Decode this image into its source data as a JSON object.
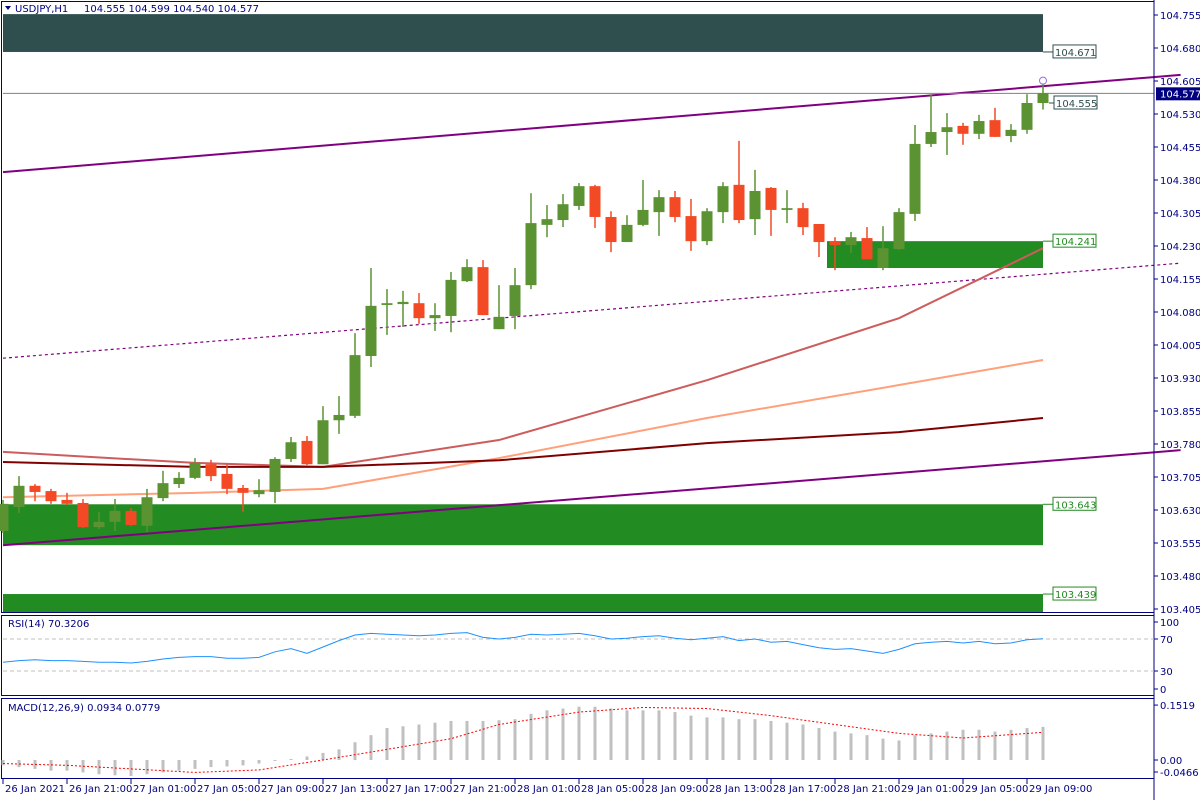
{
  "header": {
    "symbol": "USDJPY,H1",
    "ohlc": "104.555 104.599 104.540 104.577"
  },
  "colors": {
    "bull": "#5b9232",
    "bear": "#f34a25",
    "zone_green": "#228b22",
    "zone_dark": "#2f4f4f",
    "trend": "#800080",
    "ma_fast": "#cd5c5c",
    "ma_mid": "#ffa07a",
    "ma_slow": "#800000",
    "rsi": "#1e90ff",
    "macd_hist": "#c0c0c0",
    "macd_signal": "#ff0000",
    "axis": "#000080"
  },
  "chart_data": [
    {
      "type": "candlestick",
      "title": "USDJPY,H1",
      "ylim": [
        103.398,
        104.79
      ],
      "y_ticks": [
        "104.755",
        "104.680",
        "104.605",
        "104.530",
        "104.455",
        "104.380",
        "104.305",
        "104.230",
        "104.155",
        "104.080",
        "104.005",
        "103.930",
        "103.855",
        "103.780",
        "103.705",
        "103.630",
        "103.555",
        "103.480",
        "103.405"
      ],
      "x_ticks": [
        {
          "index": 0,
          "label": "26 Jan 2021"
        },
        {
          "index": 4,
          "label": "26 Jan 21:00"
        },
        {
          "index": 8,
          "label": "27 Jan 01:00"
        },
        {
          "index": 12,
          "label": "27 Jan 05:00"
        },
        {
          "index": 16,
          "label": "27 Jan 09:00"
        },
        {
          "index": 20,
          "label": "27 Jan 13:00"
        },
        {
          "index": 24,
          "label": "27 Jan 17:00"
        },
        {
          "index": 28,
          "label": "27 Jan 21:00"
        },
        {
          "index": 32,
          "label": "28 Jan 01:00"
        },
        {
          "index": 36,
          "label": "28 Jan 05:00"
        },
        {
          "index": 40,
          "label": "28 Jan 09:00"
        },
        {
          "index": 44,
          "label": "28 Jan 13:00"
        },
        {
          "index": 48,
          "label": "28 Jan 17:00"
        },
        {
          "index": 52,
          "label": "28 Jan 21:00"
        },
        {
          "index": 56,
          "label": "29 Jan 01:00"
        },
        {
          "index": 60,
          "label": "29 Jan 05:00"
        },
        {
          "index": 64,
          "label": "29 Jan 09:00"
        }
      ],
      "ohlc": [
        [
          103.582,
          103.653,
          103.578,
          103.644
        ],
        [
          103.637,
          103.707,
          103.623,
          103.685
        ],
        [
          103.685,
          103.689,
          103.65,
          103.671
        ],
        [
          103.673,
          103.678,
          103.644,
          103.65
        ],
        [
          103.653,
          103.669,
          103.641,
          103.644
        ],
        [
          103.646,
          103.655,
          103.589,
          103.591
        ],
        [
          103.591,
          103.625,
          103.587,
          103.603
        ],
        [
          103.603,
          103.655,
          103.582,
          103.628
        ],
        [
          103.628,
          103.634,
          103.594,
          103.596
        ],
        [
          103.594,
          103.678,
          103.58,
          103.659
        ],
        [
          103.657,
          103.719,
          103.65,
          103.691
        ],
        [
          103.689,
          103.716,
          103.68,
          103.703
        ],
        [
          103.703,
          103.748,
          103.7,
          103.737
        ],
        [
          103.734,
          103.744,
          103.696,
          103.707
        ],
        [
          103.712,
          103.734,
          103.666,
          103.678
        ],
        [
          103.68,
          103.687,
          103.625,
          103.669
        ],
        [
          103.666,
          103.7,
          103.659,
          103.675
        ],
        [
          103.671,
          103.75,
          103.646,
          103.746
        ],
        [
          103.746,
          103.796,
          103.739,
          103.784
        ],
        [
          103.787,
          103.798,
          103.732,
          103.734
        ],
        [
          103.734,
          103.866,
          103.734,
          103.834
        ],
        [
          103.834,
          103.889,
          103.803,
          103.846
        ],
        [
          103.844,
          104.032,
          103.839,
          103.982
        ],
        [
          103.98,
          104.18,
          103.955,
          104.094
        ],
        [
          104.096,
          104.132,
          104.028,
          104.1
        ],
        [
          104.098,
          104.128,
          104.046,
          104.103
        ],
        [
          104.1,
          104.123,
          104.053,
          104.066
        ],
        [
          104.066,
          104.1,
          104.037,
          104.073
        ],
        [
          104.071,
          104.171,
          104.034,
          104.153
        ],
        [
          104.15,
          104.2,
          104.148,
          104.182
        ],
        [
          104.182,
          104.198,
          104.073,
          104.073
        ],
        [
          104.041,
          104.141,
          104.041,
          104.069
        ],
        [
          104.071,
          104.18,
          104.041,
          104.141
        ],
        [
          104.141,
          104.35,
          104.132,
          104.282
        ],
        [
          104.278,
          104.323,
          104.25,
          104.291
        ],
        [
          104.289,
          104.348,
          104.273,
          104.325
        ],
        [
          104.321,
          104.373,
          104.312,
          104.366
        ],
        [
          104.366,
          104.369,
          104.271,
          104.296
        ],
        [
          104.296,
          104.309,
          104.216,
          104.239
        ],
        [
          104.239,
          104.3,
          104.239,
          104.278
        ],
        [
          104.278,
          104.38,
          104.275,
          104.312
        ],
        [
          104.307,
          104.357,
          104.253,
          104.341
        ],
        [
          104.341,
          104.355,
          104.284,
          104.296
        ],
        [
          104.298,
          104.337,
          104.219,
          104.241
        ],
        [
          104.241,
          104.316,
          104.232,
          104.309
        ],
        [
          104.307,
          104.375,
          104.282,
          104.366
        ],
        [
          104.369,
          104.469,
          104.282,
          104.289
        ],
        [
          104.291,
          104.403,
          104.255,
          104.355
        ],
        [
          104.362,
          104.364,
          104.253,
          104.312
        ],
        [
          104.312,
          104.357,
          104.282,
          104.316
        ],
        [
          104.316,
          104.328,
          104.255,
          104.273
        ],
        [
          104.28,
          104.28,
          104.205,
          104.239
        ],
        [
          104.241,
          104.25,
          104.175,
          104.232
        ],
        [
          104.232,
          104.262,
          104.214,
          104.25
        ],
        [
          104.248,
          104.273,
          104.2,
          104.2
        ],
        [
          104.18,
          104.275,
          104.175,
          104.225
        ],
        [
          104.223,
          104.316,
          104.221,
          104.307
        ],
        [
          104.303,
          104.505,
          104.287,
          104.462
        ],
        [
          104.462,
          104.575,
          104.455,
          104.489
        ],
        [
          104.489,
          104.532,
          104.437,
          104.5
        ],
        [
          104.503,
          104.51,
          104.46,
          104.485
        ],
        [
          104.485,
          104.528,
          104.473,
          104.514
        ],
        [
          104.516,
          104.544,
          104.478,
          104.478
        ],
        [
          104.48,
          104.507,
          104.466,
          104.494
        ],
        [
          104.494,
          104.575,
          104.485,
          104.555
        ],
        [
          104.555,
          104.599,
          104.54,
          104.577
        ]
      ],
      "moving_averages": [
        {
          "name": "MA fast",
          "color_key": "ma_fast",
          "points": [
            [
              0,
              103.762
            ],
            [
              12,
              103.737
            ],
            [
              20,
              103.728
            ],
            [
              31,
              103.789
            ],
            [
              44,
              103.925
            ],
            [
              56,
              104.066
            ],
            [
              65,
              104.225
            ]
          ]
        },
        {
          "name": "MA mid",
          "color_key": "ma_mid",
          "points": [
            [
              0,
              103.659
            ],
            [
              12,
              103.669
            ],
            [
              20,
              103.678
            ],
            [
              31,
              103.748
            ],
            [
              44,
              103.839
            ],
            [
              56,
              103.914
            ],
            [
              65,
              103.971
            ]
          ]
        },
        {
          "name": "MA slow",
          "color_key": "ma_slow",
          "points": [
            [
              0,
              103.739
            ],
            [
              12,
              103.728
            ],
            [
              20,
              103.728
            ],
            [
              31,
              103.743
            ],
            [
              44,
              103.782
            ],
            [
              56,
              103.807
            ],
            [
              65,
              103.839
            ]
          ]
        }
      ],
      "trendlines": [
        {
          "name": "upper-channel",
          "style": "solid",
          "from": [
            0,
            104.398
          ],
          "to": [
            73.6,
            104.619
          ]
        },
        {
          "name": "mid-channel",
          "style": "dotted",
          "from": [
            0,
            103.975
          ],
          "to": [
            73.6,
            104.191
          ]
        },
        {
          "name": "lower-channel",
          "style": "solid",
          "from": [
            0,
            103.55
          ],
          "to": [
            73.6,
            103.766
          ]
        }
      ],
      "zones": [
        {
          "name": "resistance-zone",
          "color_key": "zone_dark",
          "start": 0,
          "end": 65,
          "top": 104.757,
          "bottom": 104.671,
          "label": "104.671"
        },
        {
          "name": "support-zone-upper",
          "color_key": "zone_green",
          "start": 52,
          "end": 65,
          "top": 104.241,
          "bottom": 104.18,
          "label": "104.241"
        },
        {
          "name": "support-zone-middle",
          "color_key": "zone_green",
          "start": 0,
          "end": 65,
          "top": 103.643,
          "bottom": 103.55,
          "label": "103.643"
        },
        {
          "name": "support-zone-lower",
          "color_key": "zone_green",
          "start": 0,
          "end": 65,
          "top": 103.439,
          "bottom": 103.398,
          "label": "103.439"
        }
      ],
      "price_labels": [
        {
          "value": 104.555,
          "label": "104.555",
          "color_key": "zone_dark"
        }
      ],
      "current_price": {
        "value": 104.577,
        "label": "104.577"
      }
    },
    {
      "type": "line",
      "title": "RSI(14) 70.3206",
      "ylim": [
        0,
        100
      ],
      "levels": [
        70,
        30
      ],
      "y_ticks": [
        "100",
        "70",
        "30",
        "0"
      ],
      "values": [
        41,
        43,
        44,
        43,
        43,
        42,
        41,
        41,
        40,
        42,
        45,
        47,
        48,
        48,
        46,
        46,
        47,
        54,
        58,
        52,
        60,
        68,
        75,
        77,
        76,
        75,
        74,
        75,
        77,
        78,
        72,
        70,
        72,
        76,
        75,
        76,
        77,
        74,
        70,
        71,
        73,
        74,
        71,
        69,
        71,
        73,
        68,
        70,
        66,
        67,
        63,
        59,
        57,
        58,
        55,
        52,
        57,
        64,
        66,
        67,
        65,
        67,
        64,
        65,
        69,
        70.3
      ]
    },
    {
      "type": "bar",
      "title": "MACD(12,26,9) 0.0934 0.0779",
      "ylim": [
        -0.0466,
        0.1519
      ],
      "y_ticks": [
        "0.1519",
        "0.00",
        "-0.0466"
      ],
      "histogram": [
        -0.015,
        -0.02,
        -0.025,
        -0.03,
        -0.03,
        -0.035,
        -0.04,
        -0.043,
        -0.045,
        -0.04,
        -0.035,
        -0.03,
        -0.025,
        -0.02,
        -0.018,
        -0.015,
        -0.01,
        0.0,
        0.003,
        0.01,
        0.02,
        0.03,
        0.05,
        0.07,
        0.09,
        0.095,
        0.1,
        0.105,
        0.11,
        0.11,
        0.11,
        0.112,
        0.115,
        0.13,
        0.14,
        0.145,
        0.15,
        0.15,
        0.145,
        0.14,
        0.14,
        0.14,
        0.135,
        0.125,
        0.12,
        0.12,
        0.115,
        0.115,
        0.11,
        0.105,
        0.1,
        0.09,
        0.08,
        0.075,
        0.07,
        0.06,
        0.055,
        0.07,
        0.075,
        0.08,
        0.085,
        0.085,
        0.08,
        0.085,
        0.09,
        0.0934
      ],
      "signal_points": [
        [
          0,
          -0.01
        ],
        [
          4,
          -0.015
        ],
        [
          8,
          -0.025
        ],
        [
          12,
          -0.035
        ],
        [
          16,
          -0.028
        ],
        [
          20,
          0.0
        ],
        [
          24,
          0.03
        ],
        [
          28,
          0.06
        ],
        [
          31,
          0.1
        ],
        [
          36,
          0.135
        ],
        [
          40,
          0.148
        ],
        [
          44,
          0.145
        ],
        [
          48,
          0.125
        ],
        [
          52,
          0.1
        ],
        [
          56,
          0.075
        ],
        [
          60,
          0.062
        ],
        [
          65,
          0.0779
        ]
      ]
    }
  ]
}
